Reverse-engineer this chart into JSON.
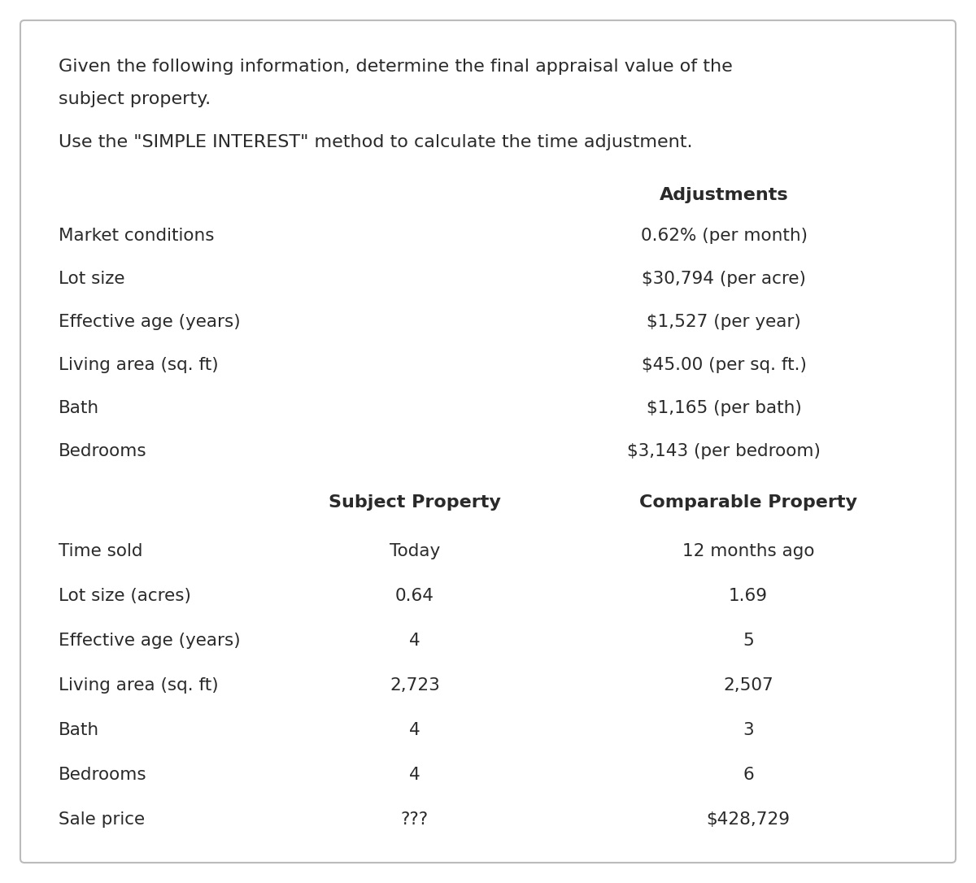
{
  "title_line1": "Given the following information, determine the final appraisal value of the",
  "title_line2": "subject property.",
  "title_line3": "Use the \"SIMPLE INTEREST\" method to calculate the time adjustment.",
  "adj_header": "Adjustments",
  "rows_top": [
    {
      "label": "Market conditions",
      "adjustment": "0.62% (per month)"
    },
    {
      "label": "Lot size",
      "adjustment": "$30,794 (per acre)"
    },
    {
      "label": "Effective age (years)",
      "adjustment": "$1,527 (per year)"
    },
    {
      "label": "Living area (sq. ft)",
      "adjustment": "$45.00 (per sq. ft.)"
    },
    {
      "label": "Bath",
      "adjustment": "$1,165 (per bath)"
    },
    {
      "label": "Bedrooms",
      "adjustment": "$3,143 (per bedroom)"
    }
  ],
  "col_headers": [
    "",
    "Subject Property",
    "Comparable Property"
  ],
  "rows_bottom": [
    {
      "label": "Time sold",
      "subject": "Today",
      "comparable": "12 months ago"
    },
    {
      "label": "Lot size (acres)",
      "subject": "0.64",
      "comparable": "1.69"
    },
    {
      "label": "Effective age (years)",
      "subject": "4",
      "comparable": "5"
    },
    {
      "label": "Living area (sq. ft)",
      "subject": "2,723",
      "comparable": "2,507"
    },
    {
      "label": "Bath",
      "subject": "4",
      "comparable": "3"
    },
    {
      "label": "Bedrooms",
      "subject": "4",
      "comparable": "6"
    },
    {
      "label": "Sale price",
      "subject": "???",
      "comparable": "$428,729"
    }
  ],
  "bg_color": "#ffffff",
  "border_color": "#bbbbbb",
  "text_color": "#2a2a2a",
  "font_size_title": 16.0,
  "font_size_body": 15.5,
  "font_size_header": 16.0,
  "fig_width": 12.0,
  "fig_height": 10.86,
  "dpi": 100
}
